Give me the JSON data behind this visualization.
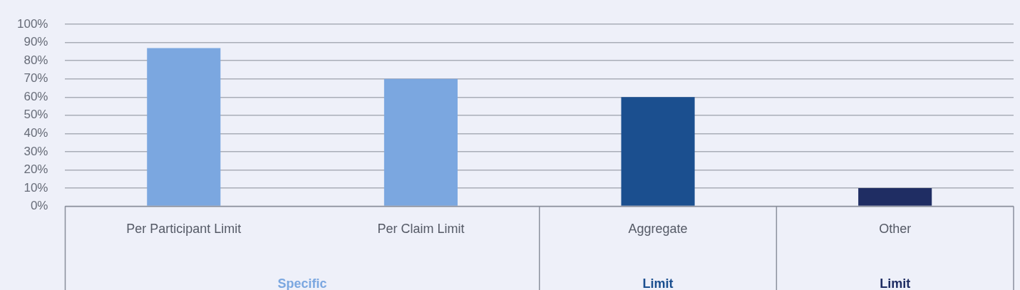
{
  "chart_data": {
    "type": "bar",
    "categories": [
      "Per Participant Limit",
      "Per Claim Limit",
      "Aggregate",
      "Other"
    ],
    "values": [
      87,
      70,
      60,
      10
    ],
    "colors": [
      "#7ba7e0",
      "#7ba7e0",
      "#1b4f8f",
      "#1f2d63"
    ],
    "ylim": [
      0,
      100
    ],
    "yticks": [
      {
        "value": 0,
        "label": "0%"
      },
      {
        "value": 10,
        "label": "10%"
      },
      {
        "value": 20,
        "label": "20%"
      },
      {
        "value": 30,
        "label": "30%"
      },
      {
        "value": 40,
        "label": "40%"
      },
      {
        "value": 50,
        "label": "50%"
      },
      {
        "value": 60,
        "label": "60%"
      },
      {
        "value": 70,
        "label": "70%"
      },
      {
        "value": 80,
        "label": "80%"
      },
      {
        "value": 90,
        "label": "90%"
      },
      {
        "value": 100,
        "label": "100%"
      }
    ],
    "grid": "y",
    "legend": false,
    "annotations": [
      "Specific",
      "Limit",
      "Limit"
    ]
  }
}
